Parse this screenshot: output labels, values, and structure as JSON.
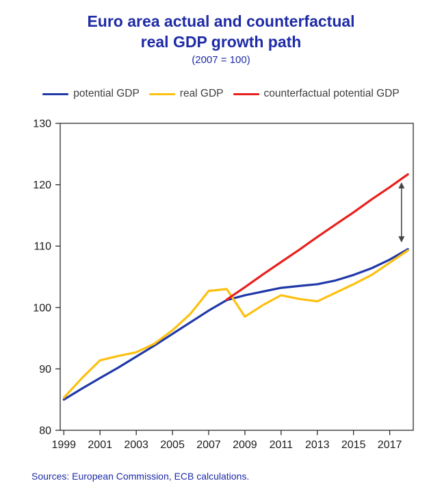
{
  "header": {
    "title_line1": "Euro area actual and counterfactual",
    "title_line2": "real GDP growth path",
    "subtitle": "(2007 = 100)"
  },
  "footer": {
    "sources": "Sources: European Commission, ECB calculations."
  },
  "chart_data": {
    "type": "line",
    "title": "Euro area actual and counterfactual real GDP growth path",
    "subtitle": "(2007 = 100)",
    "xlabel": "",
    "ylabel": "",
    "xlim": [
      1998.8,
      2018.3
    ],
    "ylim": [
      80,
      130
    ],
    "yticks": [
      80,
      90,
      100,
      110,
      120,
      130
    ],
    "xticks": [
      1999,
      2001,
      2003,
      2005,
      2007,
      2009,
      2011,
      2013,
      2015,
      2017
    ],
    "grid": false,
    "legend_position": "top",
    "axis_color": "#2b2b2b",
    "text_color": "#1a1a1a",
    "series": [
      {
        "name": "potential GDP",
        "color": "#2038a8",
        "x": [
          1999,
          2000,
          2001,
          2002,
          2003,
          2004,
          2005,
          2006,
          2007,
          2008,
          2009,
          2010,
          2011,
          2012,
          2013,
          2014,
          2015,
          2016,
          2017,
          2018
        ],
        "values": [
          85.0,
          86.8,
          88.5,
          90.2,
          92.0,
          93.8,
          95.7,
          97.6,
          99.5,
          101.2,
          102.0,
          102.6,
          103.2,
          103.5,
          103.8,
          104.4,
          105.3,
          106.4,
          107.8,
          109.5
        ]
      },
      {
        "name": "real GDP",
        "color": "#fdc00f",
        "x": [
          1999,
          2000,
          2001,
          2002,
          2003,
          2004,
          2005,
          2006,
          2007,
          2008,
          2009,
          2010,
          2011,
          2012,
          2013,
          2014,
          2015,
          2016,
          2017,
          2018
        ],
        "values": [
          85.3,
          88.5,
          91.4,
          92.1,
          92.7,
          94.1,
          96.3,
          99.0,
          102.7,
          103.0,
          98.5,
          100.4,
          102.0,
          101.4,
          101.0,
          102.4,
          103.8,
          105.3,
          107.3,
          109.3
        ]
      },
      {
        "name": "counterfactual potential GDP",
        "color": "#e8201d",
        "x": [
          2008,
          2009,
          2010,
          2011,
          2012,
          2013,
          2014,
          2015,
          2016,
          2017,
          2018
        ],
        "values": [
          101.3,
          103.3,
          105.4,
          107.4,
          109.4,
          111.5,
          113.5,
          115.5,
          117.6,
          119.6,
          121.7
        ]
      }
    ],
    "annotation_arrow": {
      "x": 2017.65,
      "y_from": 110.6,
      "y_to": 120.4,
      "color": "#454547"
    }
  }
}
